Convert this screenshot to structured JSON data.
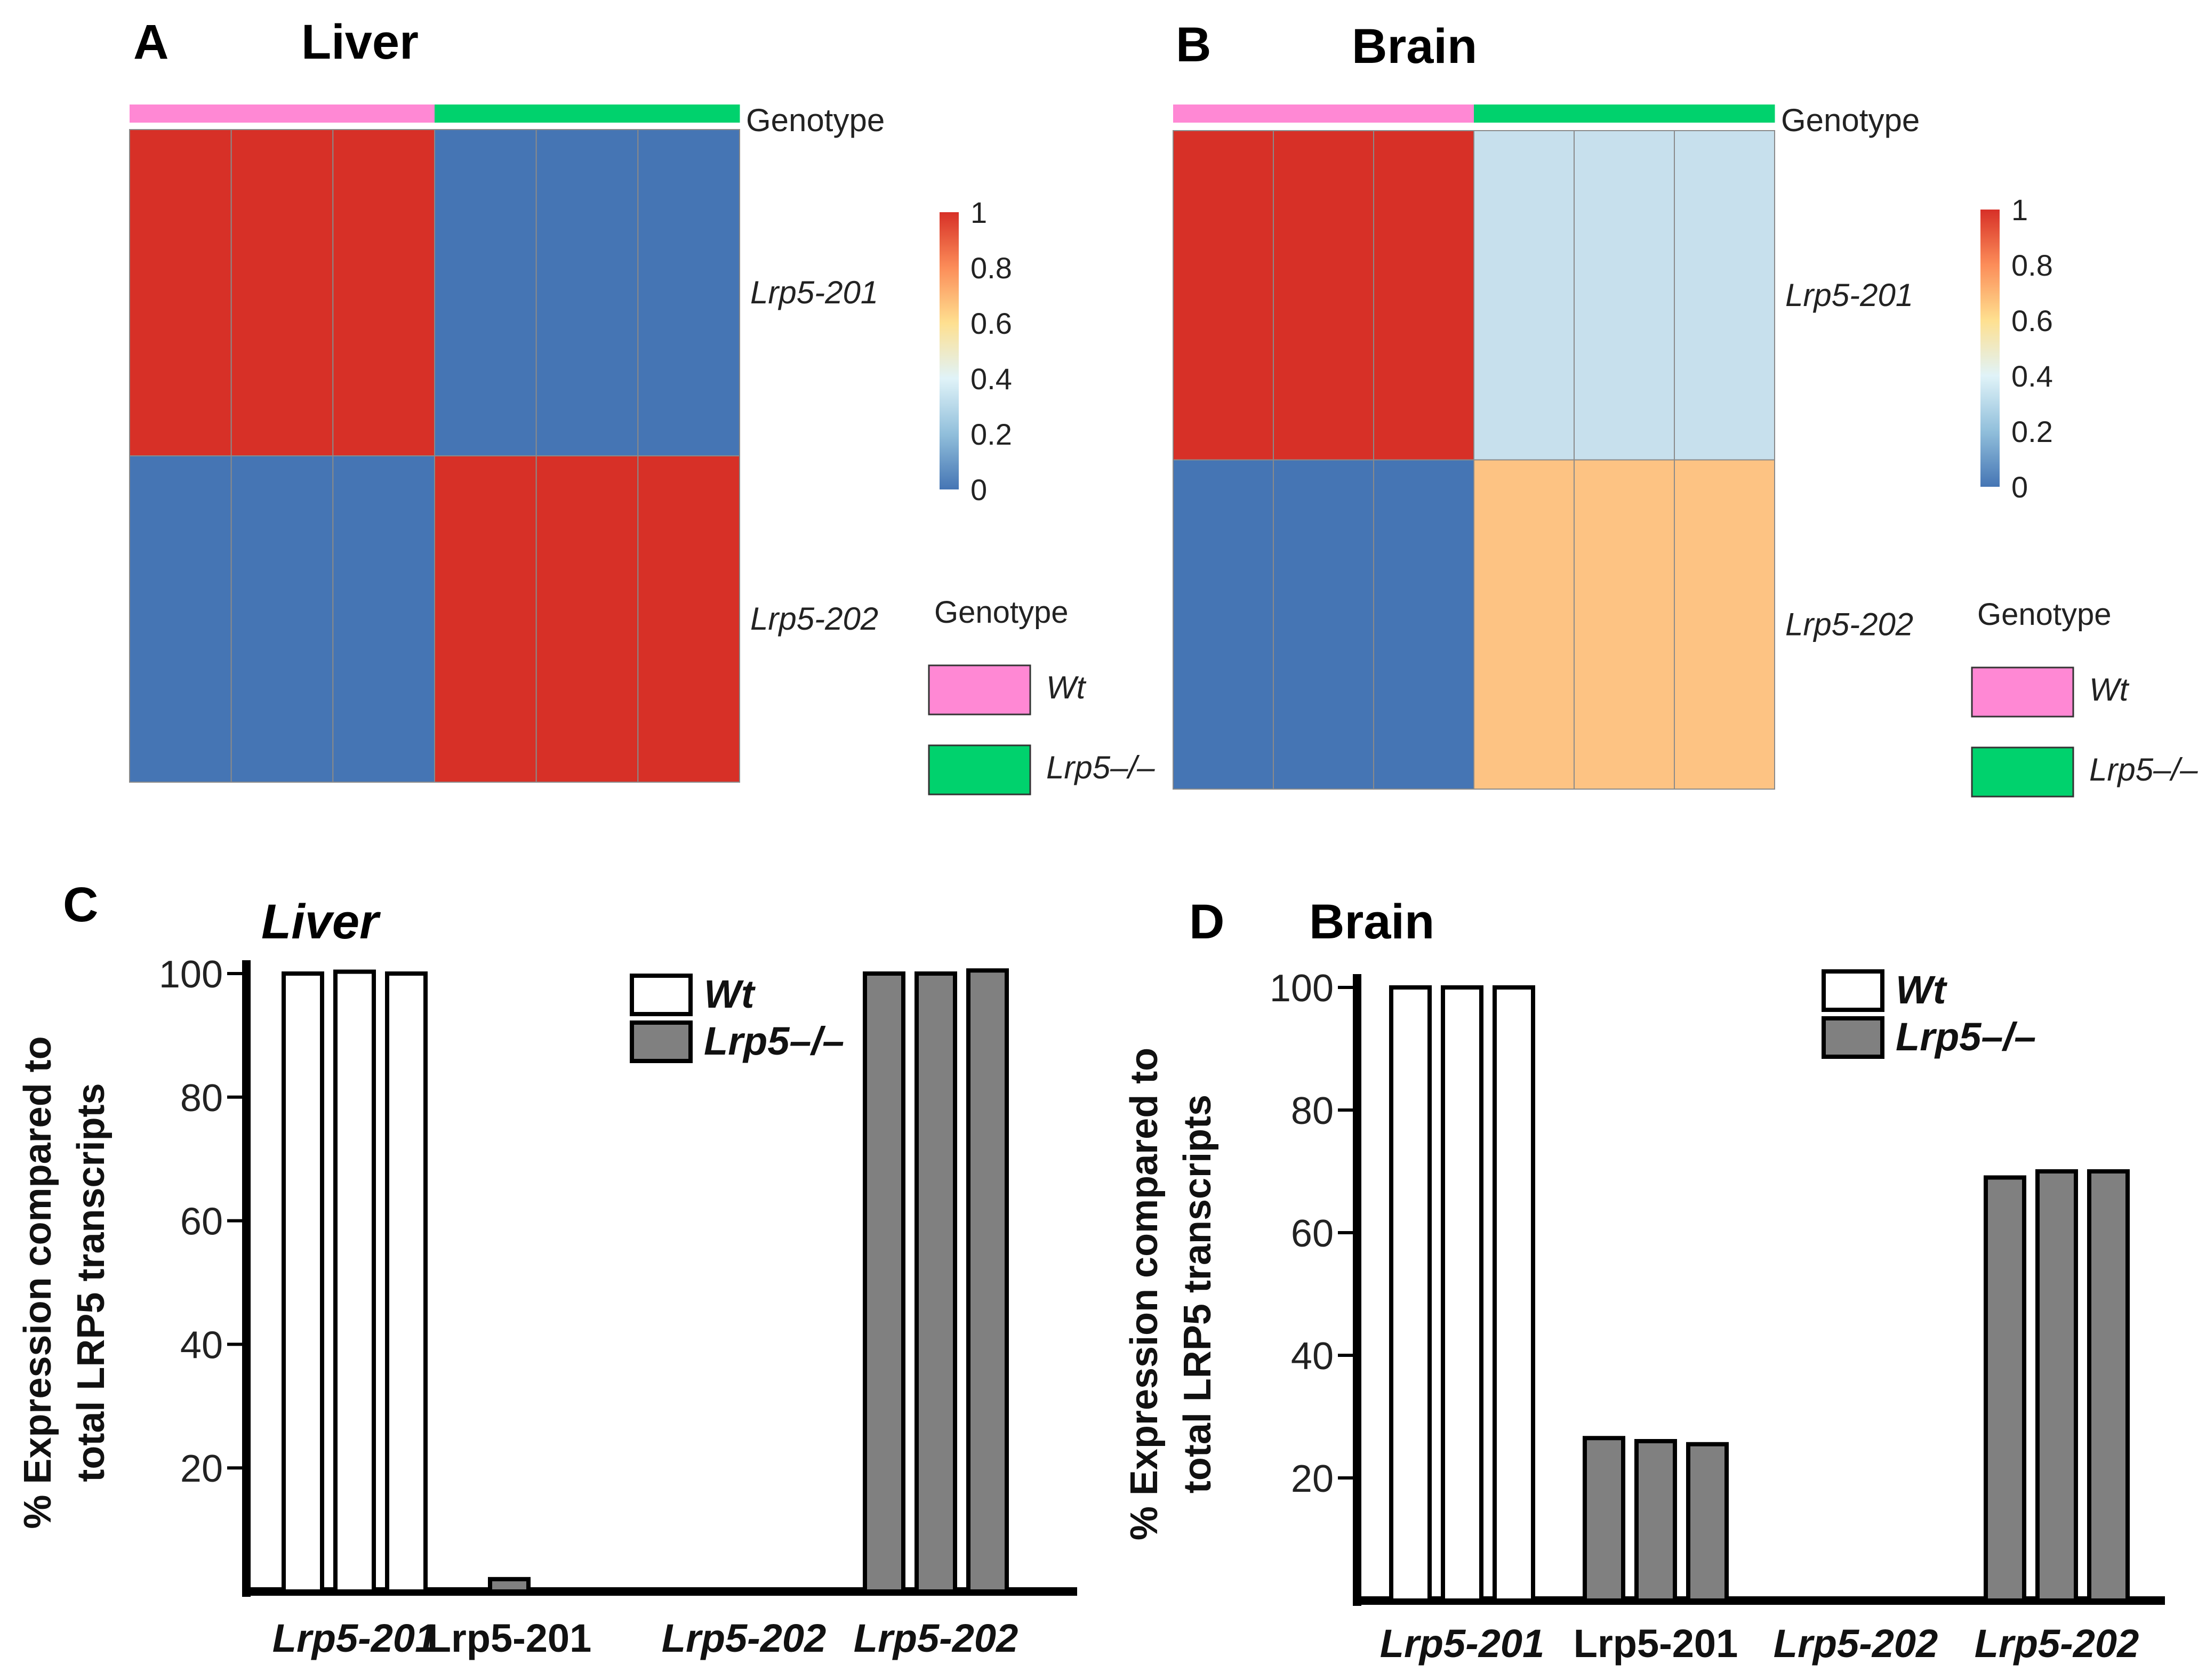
{
  "colors": {
    "wt": "#ff88d4",
    "ko": "#00d26d",
    "bar_ko": "#808080",
    "bar_wt": "#ffffff"
  },
  "chart_data": [
    {
      "panel": "A",
      "type": "heatmap",
      "title": "Liver",
      "columns_genotype": [
        "Wt",
        "Wt",
        "Wt",
        "Lrp5-/-",
        "Lrp5-/-",
        "Lrp5-/-"
      ],
      "rows": [
        "Lrp5-201",
        "Lrp5-202"
      ],
      "values": [
        [
          1,
          1,
          1,
          0,
          0,
          0
        ],
        [
          0,
          0,
          0,
          1,
          1,
          1
        ]
      ],
      "annotation_label": "Genotype",
      "colorbar": {
        "ticks": [
          "1",
          "0.8",
          "0.6",
          "0.4",
          "0.2",
          "0"
        ],
        "range": [
          0,
          1
        ]
      },
      "legend": {
        "title": "Genotype",
        "entries": [
          "Wt",
          "Lrp5–/–"
        ]
      }
    },
    {
      "panel": "B",
      "type": "heatmap",
      "title": "Brain",
      "columns_genotype": [
        "Wt",
        "Wt",
        "Wt",
        "Lrp5-/-",
        "Lrp5-/-",
        "Lrp5-/-"
      ],
      "rows": [
        "Lrp5-201",
        "Lrp5-202"
      ],
      "values": [
        [
          1,
          1,
          1,
          0.27,
          0.26,
          0.26
        ],
        [
          0,
          0,
          0,
          0.69,
          0.7,
          0.7
        ]
      ],
      "annotation_label": "Genotype",
      "colorbar": {
        "ticks": [
          "1",
          "0.8",
          "0.6",
          "0.4",
          "0.2",
          "0"
        ],
        "range": [
          0,
          1
        ]
      },
      "legend": {
        "title": "Genotype",
        "entries": [
          "Wt",
          "Lrp5–/–"
        ]
      }
    },
    {
      "panel": "C",
      "type": "bar",
      "title": "Liver",
      "ylabel": [
        "% Expression compared to",
        "total LRP5 transcripts"
      ],
      "ylim": [
        0,
        100
      ],
      "yticks": [
        "20",
        "40",
        "60",
        "80",
        "100"
      ],
      "groups": [
        {
          "label": "Lrp5-201",
          "italic": true,
          "genotype": "Wt",
          "values": [
            100,
            100.3,
            100
          ]
        },
        {
          "label": "Lrp5-201",
          "italic": false,
          "genotype": "Lrp5-/-",
          "values": [
            2
          ]
        },
        {
          "label": "Lrp5-202",
          "italic": true,
          "genotype": "Wt",
          "values": []
        },
        {
          "label": "Lrp5-202",
          "italic": true,
          "genotype": "Lrp5-/-",
          "values": [
            100,
            100,
            100.5
          ]
        }
      ],
      "legend": [
        "Wt",
        "Lrp5–/–"
      ]
    },
    {
      "panel": "D",
      "type": "bar",
      "title": "Brain",
      "ylabel": [
        "% Expression compared to",
        "total LRP5 transcripts"
      ],
      "ylim": [
        0,
        100
      ],
      "yticks": [
        "20",
        "40",
        "60",
        "80",
        "100"
      ],
      "groups": [
        {
          "label": "Lrp5-201",
          "italic": true,
          "genotype": "Wt",
          "values": [
            100,
            100,
            100
          ]
        },
        {
          "label": "Lrp5-201",
          "italic": false,
          "genotype": "Lrp5-/-",
          "values": [
            26.5,
            26,
            25.5
          ]
        },
        {
          "label": "Lrp5-202",
          "italic": true,
          "genotype": "Wt",
          "values": []
        },
        {
          "label": "Lrp5-202",
          "italic": true,
          "genotype": "Lrp5-/-",
          "values": [
            69,
            70,
            70
          ]
        }
      ],
      "legend": [
        "Wt",
        "Lrp5–/–"
      ]
    }
  ]
}
